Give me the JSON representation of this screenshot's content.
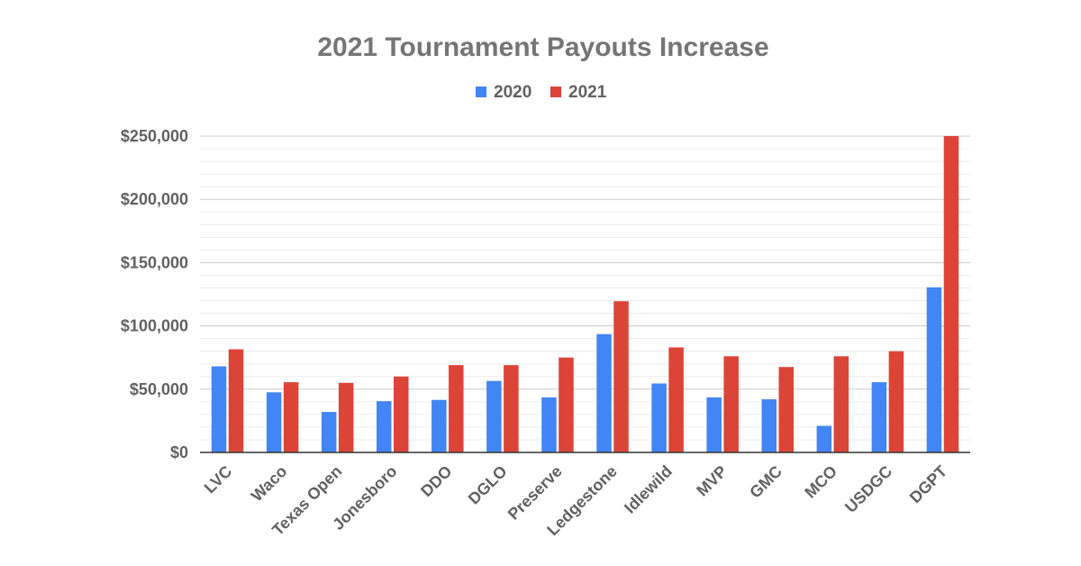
{
  "chart_data": {
    "type": "bar",
    "title": "2021 Tournament Payouts Increase",
    "xlabel": "",
    "ylabel": "",
    "legend_position": "top",
    "grid": true,
    "ylim": [
      0,
      250000
    ],
    "y_ticks": [
      "$0",
      "$50,000",
      "$100,000",
      "$150,000",
      "$200,000",
      "$250,000"
    ],
    "categories": [
      "LVC",
      "Waco",
      "Texas Open",
      "Jonesboro",
      "DDO",
      "DGLO",
      "Preserve",
      "Ledgestone",
      "Idlewild",
      "MVP",
      "GMC",
      "MCO",
      "USDGC",
      "DGPT"
    ],
    "series": [
      {
        "name": "2020",
        "color": "#4285f4",
        "values": [
          68000,
          47500,
          32000,
          40500,
          41500,
          56500,
          43500,
          93500,
          54500,
          43500,
          42000,
          21000,
          55500,
          130500
        ]
      },
      {
        "name": "2021",
        "color": "#db4437",
        "values": [
          81500,
          55500,
          55000,
          60000,
          69000,
          69000,
          75000,
          119500,
          83000,
          76000,
          67500,
          76000,
          80000,
          250000
        ]
      }
    ]
  }
}
